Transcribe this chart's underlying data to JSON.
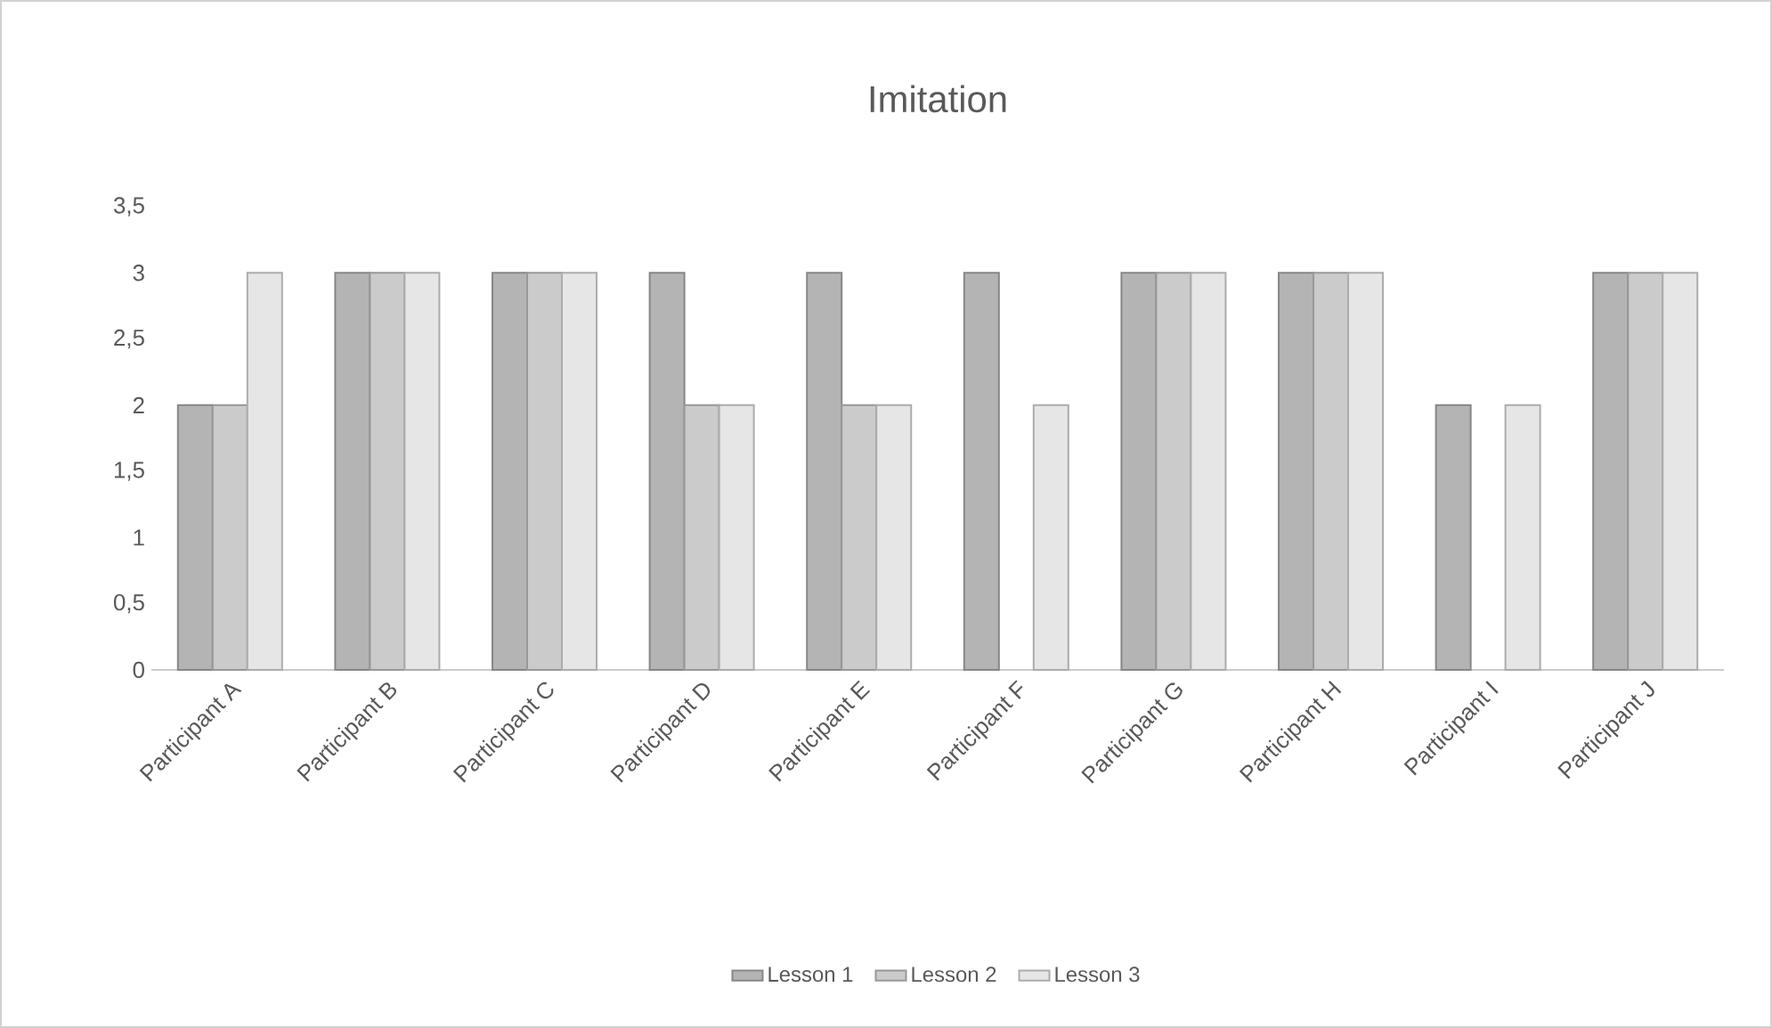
{
  "chart_data": {
    "type": "bar",
    "title": "Imitation",
    "categories": [
      "Participant A",
      "Participant B",
      "Participant C",
      "Participant D",
      "Participant E",
      "Participant F",
      "Participant G",
      "Participant H",
      "Participant I",
      "Participant J"
    ],
    "series": [
      {
        "name": "Lesson 1",
        "color": "#b4b4b4",
        "values": [
          2,
          3,
          3,
          3,
          3,
          3,
          3,
          3,
          2,
          3
        ]
      },
      {
        "name": "Lesson 2",
        "color": "#cbcbcb",
        "values": [
          2,
          3,
          3,
          2,
          2,
          null,
          3,
          3,
          null,
          3
        ]
      },
      {
        "name": "Lesson 3",
        "color": "#e6e6e6",
        "values": [
          3,
          3,
          3,
          2,
          2,
          2,
          3,
          3,
          2,
          3
        ]
      }
    ],
    "ylim": [
      0,
      3.5
    ],
    "yticks": [
      0,
      {
        "value": 0.5,
        "label": "0,5"
      },
      1,
      {
        "value": 1.5,
        "label": "1,5"
      },
      2,
      {
        "value": 2.5,
        "label": "2,5"
      },
      3,
      {
        "value": 3.5,
        "label": "3,5"
      }
    ],
    "grid": false,
    "legend": "bottom"
  }
}
